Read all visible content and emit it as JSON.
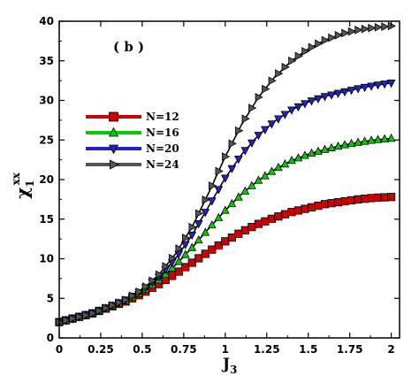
{
  "chart_data": {
    "type": "line",
    "title": "",
    "panel_label": "( b )",
    "xlabel": {
      "main": "J",
      "sub": "3"
    },
    "ylabel": {
      "main": "χ",
      "sub": "1",
      "sup": "xx"
    },
    "xlim": [
      0,
      2.05
    ],
    "ylim": [
      0,
      40
    ],
    "x_ticks": [
      0,
      0.25,
      0.5,
      0.75,
      1,
      1.25,
      1.5,
      1.75,
      2
    ],
    "x_tick_labels": [
      "0",
      "0.25",
      "0.5",
      "0.75",
      "1",
      "1.25",
      "1.5",
      "1.75",
      "2"
    ],
    "y_ticks": [
      0,
      5,
      10,
      15,
      20,
      25,
      30,
      35,
      40
    ],
    "y_tick_labels": [
      "0",
      "5",
      "10",
      "15",
      "20",
      "25",
      "30",
      "35",
      "40"
    ],
    "grid": false,
    "legend_position": "center-left",
    "x": [
      0.0,
      0.2,
      0.4,
      0.5,
      0.6,
      0.7,
      0.8,
      0.9,
      1.0,
      1.1,
      1.2,
      1.3,
      1.4,
      1.5,
      1.6,
      1.7,
      1.8,
      1.9,
      2.0
    ],
    "series": [
      {
        "name": "N=12",
        "color": "#cc0000",
        "marker": "square",
        "values": [
          2.0,
          3.1,
          4.6,
          5.6,
          6.8,
          8.1,
          9.5,
          10.9,
          12.2,
          13.4,
          14.4,
          15.2,
          15.9,
          16.4,
          16.9,
          17.2,
          17.5,
          17.7,
          17.8
        ]
      },
      {
        "name": "N=16",
        "color": "#00cc00",
        "marker": "triangle-up",
        "values": [
          2.0,
          3.1,
          4.7,
          5.8,
          7.3,
          9.2,
          11.4,
          13.8,
          16.1,
          18.2,
          19.9,
          21.3,
          22.4,
          23.2,
          23.8,
          24.3,
          24.7,
          25.0,
          25.2
        ]
      },
      {
        "name": "N=20",
        "color": "#2222cc",
        "marker": "triangle-down",
        "values": [
          2.0,
          3.1,
          4.8,
          6.0,
          7.7,
          10.0,
          13.0,
          16.6,
          20.2,
          23.2,
          25.6,
          27.4,
          28.8,
          29.8,
          30.5,
          31.0,
          31.5,
          31.9,
          32.2
        ]
      },
      {
        "name": "N=24",
        "color": "#555555",
        "marker": "triangle-right",
        "values": [
          2.0,
          3.1,
          4.8,
          6.1,
          8.0,
          10.6,
          14.0,
          18.3,
          22.9,
          27.0,
          30.4,
          33.0,
          35.0,
          36.5,
          37.6,
          38.4,
          38.9,
          39.2,
          39.4
        ]
      }
    ]
  }
}
